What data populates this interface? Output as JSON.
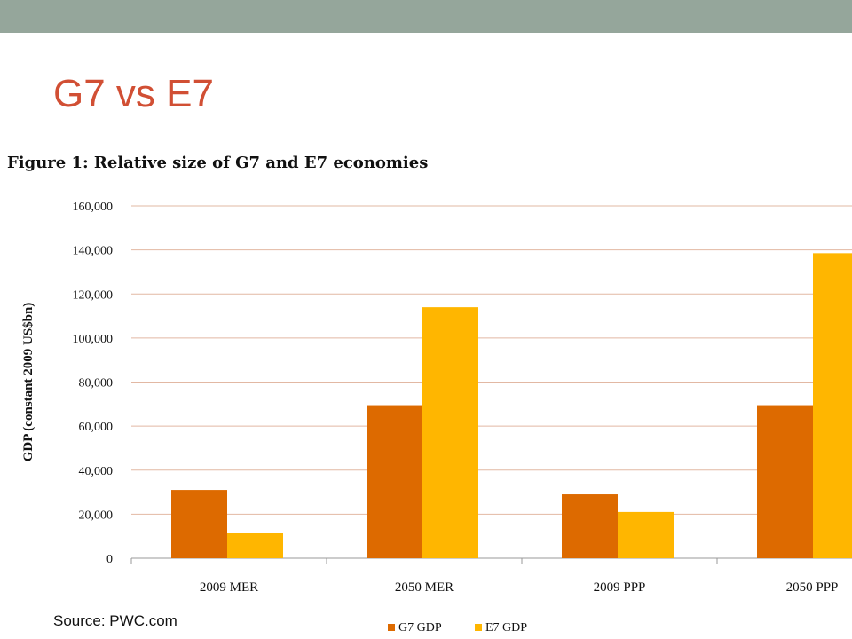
{
  "slide": {
    "title": "G7 vs E7",
    "source": "Source: PWC.com",
    "accent_color": "#d14f34",
    "top_bar_color": "#95a69b"
  },
  "chart_data": {
    "type": "bar",
    "title": "Figure 1: Relative size of G7 and E7 economies",
    "xlabel": "",
    "ylabel": "GDP (constant 2009 US$bn)",
    "categories": [
      "2009 MER",
      "2050 MER",
      "2009 PPP",
      "2050 PPP"
    ],
    "series": [
      {
        "name": "G7 GDP",
        "values": [
          31000,
          69500,
          29000,
          69500
        ],
        "color": "#dd6a00"
      },
      {
        "name": "E7 GDP",
        "values": [
          11500,
          114000,
          21000,
          138500
        ],
        "color": "#ffb600"
      }
    ],
    "ylim": [
      0,
      160000
    ],
    "yticks": [
      "0",
      "20,000",
      "40,000",
      "60,000",
      "80,000",
      "100,000",
      "120,000",
      "140,000",
      "160,000"
    ],
    "gridlines": true,
    "gridline_color": "#e2b8a3",
    "legend_position": "bottom"
  }
}
